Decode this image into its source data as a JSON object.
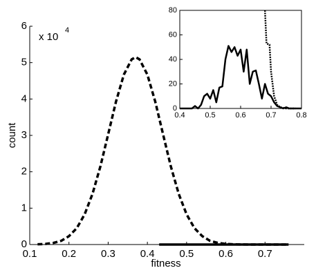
{
  "chart_data": [
    {
      "type": "line",
      "xlabel": "fitness",
      "ylabel": "count",
      "annotation": {
        "base": "x 10",
        "exponent": "4"
      },
      "xlim": [
        0.1,
        0.8
      ],
      "ylim": [
        0,
        6
      ],
      "xticks": [
        0.1,
        0.2,
        0.3,
        0.4,
        0.5,
        0.6,
        0.7
      ],
      "yticks": [
        0,
        1,
        2,
        3,
        4,
        5,
        6
      ],
      "series": [
        {
          "color": "#000000",
          "dash": "dashed",
          "x": [
            0.12,
            0.14,
            0.16,
            0.18,
            0.2,
            0.22,
            0.24,
            0.26,
            0.28,
            0.3,
            0.32,
            0.34,
            0.36,
            0.37,
            0.38,
            0.4,
            0.42,
            0.44,
            0.46,
            0.48,
            0.5,
            0.52,
            0.54,
            0.56,
            0.58,
            0.6,
            0.62,
            0.66,
            0.76
          ],
          "values": [
            0.006,
            0.017,
            0.044,
            0.1,
            0.23,
            0.45,
            0.83,
            1.39,
            2.14,
            3.03,
            3.93,
            4.67,
            5.09,
            5.15,
            5.09,
            4.67,
            3.93,
            3.03,
            2.14,
            1.39,
            0.83,
            0.45,
            0.23,
            0.1,
            0.044,
            0.017,
            0.006,
            0,
            0
          ]
        },
        {
          "color": "#000000",
          "dash": "solid",
          "x": [
            0.43,
            0.76
          ],
          "values": [
            0,
            0
          ]
        }
      ]
    },
    {
      "type": "line",
      "xlim": [
        0.4,
        0.8
      ],
      "ylim": [
        0,
        80
      ],
      "xticks": [
        0.4,
        0.5,
        0.6,
        0.7,
        0.8
      ],
      "yticks": [
        0,
        20,
        40,
        60,
        80
      ],
      "series": [
        {
          "color": "#000000",
          "dash": "solid",
          "x": [
            0.4,
            0.41,
            0.42,
            0.43,
            0.44,
            0.45,
            0.46,
            0.47,
            0.48,
            0.49,
            0.5,
            0.51,
            0.52,
            0.53,
            0.54,
            0.55,
            0.56,
            0.57,
            0.58,
            0.59,
            0.6,
            0.61,
            0.62,
            0.63,
            0.64,
            0.65,
            0.66,
            0.67,
            0.68,
            0.69,
            0.7,
            0.71,
            0.72,
            0.73,
            0.74,
            0.75,
            0.76,
            0.77,
            0.78,
            0.79,
            0.8
          ],
          "values": [
            0,
            0,
            0,
            0,
            0,
            2,
            0,
            3,
            10,
            12,
            8,
            15,
            5,
            17,
            18,
            40,
            51,
            46,
            50,
            43,
            48,
            30,
            48,
            20,
            30,
            31,
            20,
            8,
            20,
            12,
            10,
            5,
            2,
            1,
            0,
            1,
            0,
            0,
            0,
            0,
            0
          ]
        },
        {
          "color": "#000000",
          "dash": "dotted",
          "x": [
            0.68,
            0.685,
            0.695,
            0.7,
            0.71,
            0.72,
            0.73,
            0.75,
            0.78
          ],
          "values": [
            80,
            53,
            52,
            30,
            10,
            3,
            1,
            0,
            0
          ]
        }
      ]
    }
  ]
}
